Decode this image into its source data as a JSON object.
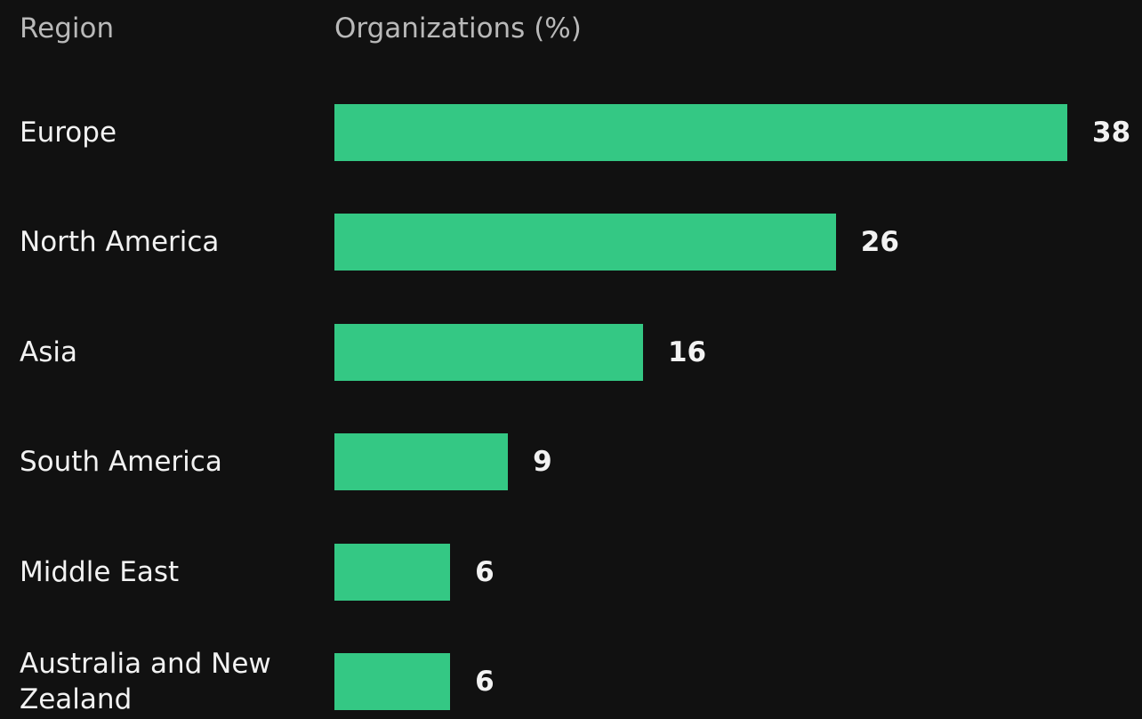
{
  "chart_data": {
    "type": "bar",
    "orientation": "horizontal",
    "category_label": "Region",
    "value_label": "Organizations (%)",
    "categories": [
      "Europe",
      "North America",
      "Asia",
      "South America",
      "Middle East",
      "Australia and New Zealand"
    ],
    "values": [
      38,
      26,
      16,
      9,
      6,
      6
    ],
    "color": "#34c884"
  }
}
